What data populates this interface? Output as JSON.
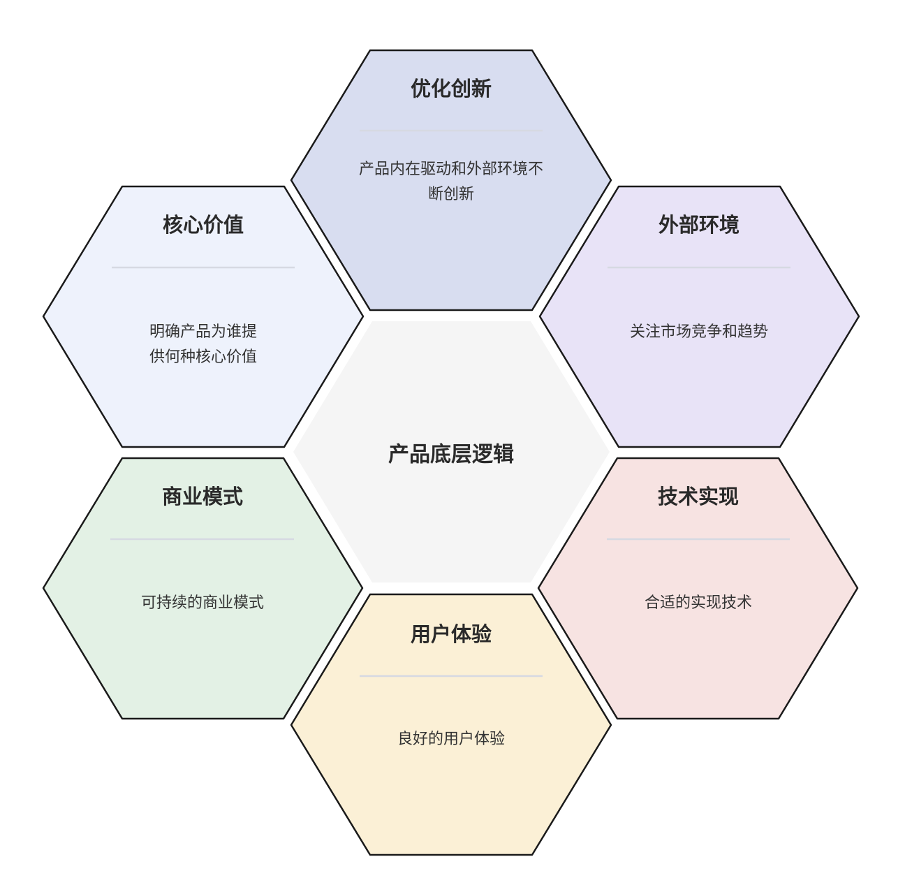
{
  "center": {
    "title": "产品底层逻辑",
    "fill": "#f5f5f5"
  },
  "hexagons": [
    {
      "id": "optimize-innovate",
      "title": "优化创新",
      "desc_lines": [
        "产品内在驱动和外部环境不",
        "断创新"
      ],
      "fill": "#d8ddf0"
    },
    {
      "id": "core-value",
      "title": "核心价值",
      "desc_lines": [
        "明确产品为谁提",
        "供何种核心价值"
      ],
      "fill": "#eef2fc"
    },
    {
      "id": "external-env",
      "title": "外部环境",
      "desc_lines": [
        "关注市场竞争和趋势"
      ],
      "fill": "#e8e3f7"
    },
    {
      "id": "business-model",
      "title": "商业模式",
      "desc_lines": [
        "可持续的商业模式"
      ],
      "fill": "#e3f1e5"
    },
    {
      "id": "tech-impl",
      "title": "技术实现",
      "desc_lines": [
        "合适的实现技术"
      ],
      "fill": "#f7e3e2"
    },
    {
      "id": "user-experience",
      "title": "用户体验",
      "desc_lines": [
        "良好的用户体验"
      ],
      "fill": "#fbf0d6"
    }
  ],
  "colors": {
    "stroke": "#1a1a1a",
    "divider": "#d6d9e2"
  }
}
